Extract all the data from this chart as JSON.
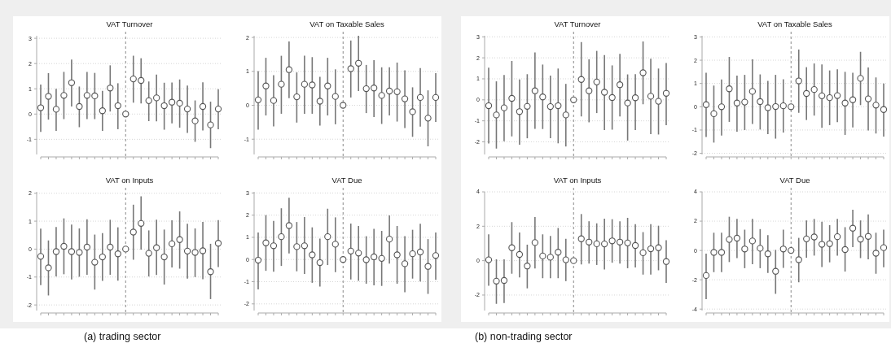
{
  "chart_data": [
    {
      "type": "scatter",
      "title": "VAT Turnover",
      "annotations": [
        "(a) trading sector"
      ],
      "categories": [
        null,
        null,
        null,
        null,
        null,
        null,
        null,
        null,
        null,
        null,
        null,
        null,
        null,
        null,
        null,
        null,
        null,
        null,
        null,
        null,
        null,
        null,
        null,
        null
      ],
      "tick_labels": "y",
      "ylim": [
        -1.6,
        3.1
      ],
      "yticks": [
        -1,
        0,
        1,
        2,
        3
      ],
      "grid": "y",
      "marker": "circle",
      "color": "#555555",
      "values": [
        0.25,
        0.7,
        0.19,
        0.74,
        1.24,
        0.3,
        0.74,
        0.72,
        0.13,
        1.03,
        0.33,
        0,
        1.39,
        1.33,
        0.53,
        0.64,
        0.33,
        0.47,
        0.43,
        0.2,
        -0.27,
        0.3,
        -0.43,
        0.2
      ],
      "errors": [
        [
          -0.71,
          1.17
        ],
        [
          -0.22,
          1.62
        ],
        [
          -0.67,
          1.0
        ],
        [
          -0.2,
          1.67
        ],
        [
          0.3,
          2.16
        ],
        [
          -0.52,
          1.09
        ],
        [
          -0.2,
          1.67
        ],
        [
          -0.2,
          1.63
        ],
        [
          -0.67,
          0.92
        ],
        [
          0.1,
          1.93
        ],
        [
          -0.6,
          1.22
        ],
        null,
        [
          0.45,
          2.31
        ],
        [
          0.42,
          2.21
        ],
        [
          -0.28,
          1.29
        ],
        [
          -0.29,
          1.56
        ],
        [
          -0.62,
          1.24
        ],
        [
          -0.37,
          1.25
        ],
        [
          -0.54,
          1.37
        ],
        [
          -0.75,
          1.13
        ],
        [
          -1.1,
          0.54
        ],
        [
          -0.65,
          1.26
        ],
        [
          -1.35,
          0.49
        ],
        [
          -0.6,
          0.98
        ]
      ]
    },
    {
      "type": "scatter",
      "title": "VAT on Taxable Sales",
      "categories": [
        null,
        null,
        null,
        null,
        null,
        null,
        null,
        null,
        null,
        null,
        null,
        null,
        null,
        null,
        null,
        null,
        null,
        null,
        null,
        null,
        null,
        null,
        null,
        null
      ],
      "tick_labels": "y",
      "ylim": [
        -1.45,
        2.05
      ],
      "yticks": [
        -1,
        0,
        1,
        2
      ],
      "grid": "y",
      "marker": "circle",
      "color": "#555555",
      "values": [
        0.16,
        0.57,
        0.14,
        0.62,
        1.05,
        0.25,
        0.62,
        0.6,
        0.12,
        0.57,
        0.26,
        0,
        1.08,
        1.24,
        0.49,
        0.51,
        0.29,
        0.42,
        0.4,
        0.19,
        -0.19,
        0.23,
        -0.38,
        0.23
      ],
      "errors": [
        [
          -0.72,
          1.01
        ],
        [
          -0.3,
          1.4
        ],
        [
          -0.62,
          0.89
        ],
        [
          -0.25,
          1.46
        ],
        [
          0.21,
          1.88
        ],
        [
          -0.51,
          0.97
        ],
        [
          -0.25,
          1.46
        ],
        [
          -0.25,
          1.42
        ],
        [
          -0.6,
          0.84
        ],
        [
          -0.3,
          1.4
        ],
        [
          -0.56,
          1.06
        ],
        null,
        [
          0.23,
          1.91
        ],
        [
          0.42,
          2.05
        ],
        [
          -0.23,
          1.19
        ],
        [
          -0.35,
          1.33
        ],
        [
          -0.55,
          1.12
        ],
        [
          -0.3,
          1.12
        ],
        [
          -0.48,
          1.26
        ],
        [
          -0.67,
          1.03
        ],
        [
          -0.93,
          0.53
        ],
        [
          -0.63,
          1.1
        ],
        [
          -1.21,
          0.44
        ],
        [
          -0.49,
          0.95
        ]
      ]
    },
    {
      "type": "scatter",
      "title": "VAT on Inputs",
      "categories": [
        null,
        null,
        null,
        null,
        null,
        null,
        null,
        null,
        null,
        null,
        null,
        null,
        null,
        null,
        null,
        null,
        null,
        null,
        null,
        null,
        null,
        null,
        null,
        null
      ],
      "tick_labels": "y",
      "ylim": [
        -2.2,
        2.05
      ],
      "yticks": [
        -2,
        -1,
        0,
        1,
        2
      ],
      "grid": "y",
      "marker": "circle",
      "color": "#555555",
      "values": [
        -0.26,
        -0.67,
        -0.09,
        0.1,
        -0.09,
        -0.12,
        0.07,
        -0.47,
        -0.28,
        0.07,
        -0.17,
        0,
        0.61,
        0.92,
        -0.15,
        0.05,
        -0.28,
        0.19,
        0.34,
        -0.07,
        -0.12,
        -0.06,
        -0.81,
        0.21
      ],
      "errors": [
        [
          -1.29,
          0.73
        ],
        [
          -1.66,
          0.31
        ],
        [
          -0.98,
          0.79
        ],
        [
          -0.9,
          1.1
        ],
        [
          -1.09,
          0.88
        ],
        [
          -0.99,
          0.74
        ],
        [
          -0.92,
          1.07
        ],
        [
          -1.45,
          0.52
        ],
        [
          -1.14,
          0.57
        ],
        [
          -0.92,
          1.05
        ],
        [
          -1.13,
          0.78
        ],
        null,
        [
          -0.38,
          1.59
        ],
        [
          -0.02,
          1.89
        ],
        [
          -0.98,
          0.67
        ],
        [
          -0.93,
          1.05
        ],
        [
          -1.27,
          0.7
        ],
        [
          -0.66,
          1.03
        ],
        [
          -0.7,
          1.35
        ],
        [
          -1.06,
          0.91
        ],
        [
          -1.0,
          0.74
        ],
        [
          -1.08,
          0.97
        ],
        [
          -1.79,
          0.19
        ],
        [
          -0.64,
          1.04
        ]
      ]
    },
    {
      "type": "scatter",
      "title": "VAT Due",
      "categories": [
        null,
        null,
        null,
        null,
        null,
        null,
        null,
        null,
        null,
        null,
        null,
        null,
        null,
        null,
        null,
        null,
        null,
        null,
        null,
        null,
        null,
        null,
        null,
        null
      ],
      "tick_labels": "y",
      "ylim": [
        -2.3,
        3.05
      ],
      "yticks": [
        -2,
        -1,
        0,
        1,
        2,
        3
      ],
      "grid": "y",
      "marker": "circle",
      "color": "#555555",
      "values": [
        -0.03,
        0.75,
        0.62,
        1.03,
        1.53,
        0.58,
        0.62,
        0.21,
        -0.14,
        1.03,
        0.69,
        0,
        0.38,
        0.29,
        -0.01,
        0.12,
        0.05,
        0.92,
        0.21,
        -0.19,
        0.26,
        0.34,
        -0.31,
        0.18
      ],
      "errors": [
        [
          -1.35,
          1.22
        ],
        [
          -0.51,
          2.0
        ],
        [
          -0.55,
          1.74
        ],
        [
          -0.29,
          2.31
        ],
        [
          0.27,
          2.78
        ],
        [
          -0.53,
          1.69
        ],
        [
          -0.65,
          1.91
        ],
        [
          -1.05,
          1.45
        ],
        [
          -1.22,
          0.94
        ],
        [
          -0.25,
          2.29
        ],
        [
          -0.57,
          1.9
        ],
        null,
        [
          -0.9,
          1.62
        ],
        [
          -0.96,
          1.51
        ],
        [
          -1.09,
          1.05
        ],
        [
          -1.16,
          1.38
        ],
        [
          -1.19,
          1.29
        ],
        [
          -0.18,
          1.99
        ],
        [
          -1.09,
          1.51
        ],
        [
          -1.48,
          1.05
        ],
        [
          -0.86,
          1.34
        ],
        [
          -0.99,
          1.61
        ],
        [
          -1.55,
          0.92
        ],
        [
          -0.92,
          1.22
        ]
      ]
    },
    {
      "type": "scatter",
      "title": "VAT Turnover",
      "annotations": [
        "(b) non-trading sector"
      ],
      "categories": [
        null,
        null,
        null,
        null,
        null,
        null,
        null,
        null,
        null,
        null,
        null,
        null,
        null,
        null,
        null,
        null,
        null,
        null,
        null,
        null,
        null,
        null,
        null,
        null
      ],
      "tick_labels": "y",
      "ylim": [
        -2.6,
        3.05
      ],
      "yticks": [
        -2,
        -1,
        0,
        1,
        2,
        3
      ],
      "grid": "y",
      "marker": "circle",
      "color": "#555555",
      "values": [
        -0.28,
        -0.72,
        -0.38,
        0.07,
        -0.56,
        -0.31,
        0.43,
        0.14,
        -0.32,
        -0.28,
        -0.72,
        0,
        0.97,
        0.43,
        0.85,
        0.36,
        0.11,
        0.72,
        -0.15,
        0.1,
        1.29,
        0.17,
        -0.07,
        0.31
      ],
      "errors": [
        [
          -2.08,
          1.53
        ],
        [
          -2.32,
          0.88
        ],
        [
          -1.97,
          1.18
        ],
        [
          -1.74,
          1.85
        ],
        [
          -2.14,
          0.97
        ],
        [
          -1.83,
          1.22
        ],
        [
          -1.38,
          2.26
        ],
        [
          -1.39,
          1.68
        ],
        [
          -1.83,
          1.15
        ],
        [
          -2.07,
          1.49
        ],
        [
          -2.22,
          0.76
        ],
        null,
        [
          -0.79,
          2.75
        ],
        [
          -1.07,
          1.93
        ],
        [
          -0.63,
          2.33
        ],
        [
          -1.44,
          2.13
        ],
        [
          -1.42,
          1.64
        ],
        [
          -0.79,
          2.19
        ],
        [
          -1.94,
          1.21
        ],
        [
          -1.44,
          1.22
        ],
        [
          -0.21,
          2.78
        ],
        [
          -1.63,
          1.96
        ],
        [
          -1.65,
          1.49
        ],
        [
          -1.21,
          1.75
        ]
      ]
    },
    {
      "type": "scatter",
      "title": "VAT on Taxable Sales",
      "categories": [
        null,
        null,
        null,
        null,
        null,
        null,
        null,
        null,
        null,
        null,
        null,
        null,
        null,
        null,
        null,
        null,
        null,
        null,
        null,
        null,
        null,
        null,
        null,
        null
      ],
      "tick_labels": "y",
      "ylim": [
        -2.05,
        3.05
      ],
      "yticks": [
        -2,
        -1,
        0,
        1,
        2,
        3
      ],
      "grid": "y",
      "marker": "circle",
      "color": "#555555",
      "values": [
        0.09,
        -0.3,
        0.0,
        0.77,
        0.16,
        0.2,
        0.66,
        0.22,
        -0.04,
        0.01,
        0.04,
        0,
        1.11,
        0.57,
        0.74,
        0.47,
        0.39,
        0.48,
        0.16,
        0.3,
        1.22,
        0.34,
        0.07,
        -0.12
      ],
      "errors": [
        [
          -1.3,
          1.46
        ],
        [
          -1.54,
          0.91
        ],
        [
          -1.24,
          1.17
        ],
        [
          -0.65,
          2.14
        ],
        [
          -1.07,
          1.34
        ],
        [
          -1.0,
          1.37
        ],
        [
          -0.74,
          2.04
        ],
        [
          -0.98,
          1.39
        ],
        [
          -1.18,
          1.11
        ],
        [
          -1.37,
          1.37
        ],
        [
          -1.11,
          1.18
        ],
        null,
        [
          -0.26,
          2.46
        ],
        [
          -0.57,
          1.7
        ],
        [
          -0.38,
          1.86
        ],
        [
          -0.91,
          1.82
        ],
        [
          -0.79,
          1.56
        ],
        [
          -0.66,
          1.61
        ],
        [
          -1.21,
          1.5
        ],
        [
          -0.89,
          1.46
        ],
        [
          0.07,
          2.36
        ],
        [
          -1.02,
          1.69
        ],
        [
          -1.15,
          1.26
        ],
        [
          -1.28,
          1.0
        ]
      ]
    },
    {
      "type": "scatter",
      "title": "VAT on Inputs",
      "categories": [
        null,
        null,
        null,
        null,
        null,
        null,
        null,
        null,
        null,
        null,
        null,
        null,
        null,
        null,
        null,
        null,
        null,
        null,
        null,
        null,
        null,
        null,
        null,
        null
      ],
      "tick_labels": "y",
      "ylim": [
        -2.9,
        4
      ],
      "yticks": [
        -2,
        0,
        2,
        4
      ],
      "grid": "y",
      "marker": "circle",
      "color": "#555555",
      "values": [
        0.05,
        -1.19,
        -1.15,
        0.75,
        0.36,
        -0.31,
        1.05,
        0.27,
        0.2,
        0.49,
        0.05,
        0,
        1.27,
        1.08,
        0.98,
        0.97,
        1.15,
        1.08,
        1.03,
        0.88,
        0.46,
        0.69,
        0.75,
        -0.05
      ],
      "errors": [
        [
          -1.46,
          1.53
        ],
        [
          -2.51,
          0.08
        ],
        [
          -2.46,
          0.08
        ],
        [
          -0.76,
          2.24
        ],
        [
          -0.97,
          1.64
        ],
        [
          -1.61,
          0.93
        ],
        [
          -0.46,
          2.54
        ],
        [
          -1.02,
          1.53
        ],
        [
          -1.02,
          1.44
        ],
        [
          -1.02,
          1.9
        ],
        [
          -1.19,
          1.27
        ],
        null,
        [
          -0.22,
          2.71
        ],
        [
          -0.17,
          2.29
        ],
        [
          -0.25,
          2.17
        ],
        [
          -0.51,
          2.44
        ],
        [
          -0.12,
          2.41
        ],
        [
          -0.17,
          2.29
        ],
        [
          -0.44,
          2.49
        ],
        [
          -0.39,
          2.12
        ],
        [
          -0.81,
          1.66
        ],
        [
          -0.81,
          2.12
        ],
        [
          -0.56,
          2.03
        ],
        [
          -1.29,
          1.19
        ]
      ]
    },
    {
      "type": "scatter",
      "title": "VAT Due",
      "categories": [
        null,
        null,
        null,
        null,
        null,
        null,
        null,
        null,
        null,
        null,
        null,
        null,
        null,
        null,
        null,
        null,
        null,
        null,
        null,
        null,
        null,
        null,
        null,
        null
      ],
      "tick_labels": "y",
      "ylim": [
        -4.1,
        4
      ],
      "yticks": [
        -4,
        -2,
        0,
        2,
        4
      ],
      "grid": "y",
      "marker": "circle",
      "color": "#555555",
      "values": [
        -1.71,
        -0.13,
        -0.13,
        0.75,
        0.84,
        0.1,
        0.65,
        0.15,
        -0.23,
        -1.42,
        0.1,
        0,
        -0.63,
        0.79,
        0.92,
        0.42,
        0.46,
        0.94,
        0.06,
        1.52,
        0.77,
        0.96,
        -0.19,
        0.19
      ],
      "errors": [
        [
          -3.32,
          -0.21
        ],
        [
          -1.48,
          1.21
        ],
        [
          -1.48,
          1.21
        ],
        [
          -0.79,
          2.3
        ],
        [
          -0.52,
          2.15
        ],
        [
          -1.21,
          1.42
        ],
        [
          -0.94,
          2.15
        ],
        [
          -1.21,
          1.46
        ],
        [
          -1.54,
          1.04
        ],
        [
          -2.96,
          0.04
        ],
        [
          -1.19,
          1.42
        ],
        null,
        [
          -2.17,
          0.86
        ],
        [
          -0.5,
          2.05
        ],
        [
          -0.35,
          2.15
        ],
        [
          -1.13,
          1.96
        ],
        [
          -0.81,
          1.73
        ],
        [
          -0.35,
          2.15
        ],
        [
          -1.44,
          1.59
        ],
        [
          0.23,
          2.78
        ],
        [
          -0.52,
          2.05
        ],
        [
          -0.61,
          2.46
        ],
        [
          -1.59,
          1.21
        ],
        [
          -1.15,
          1.42
        ]
      ]
    }
  ]
}
